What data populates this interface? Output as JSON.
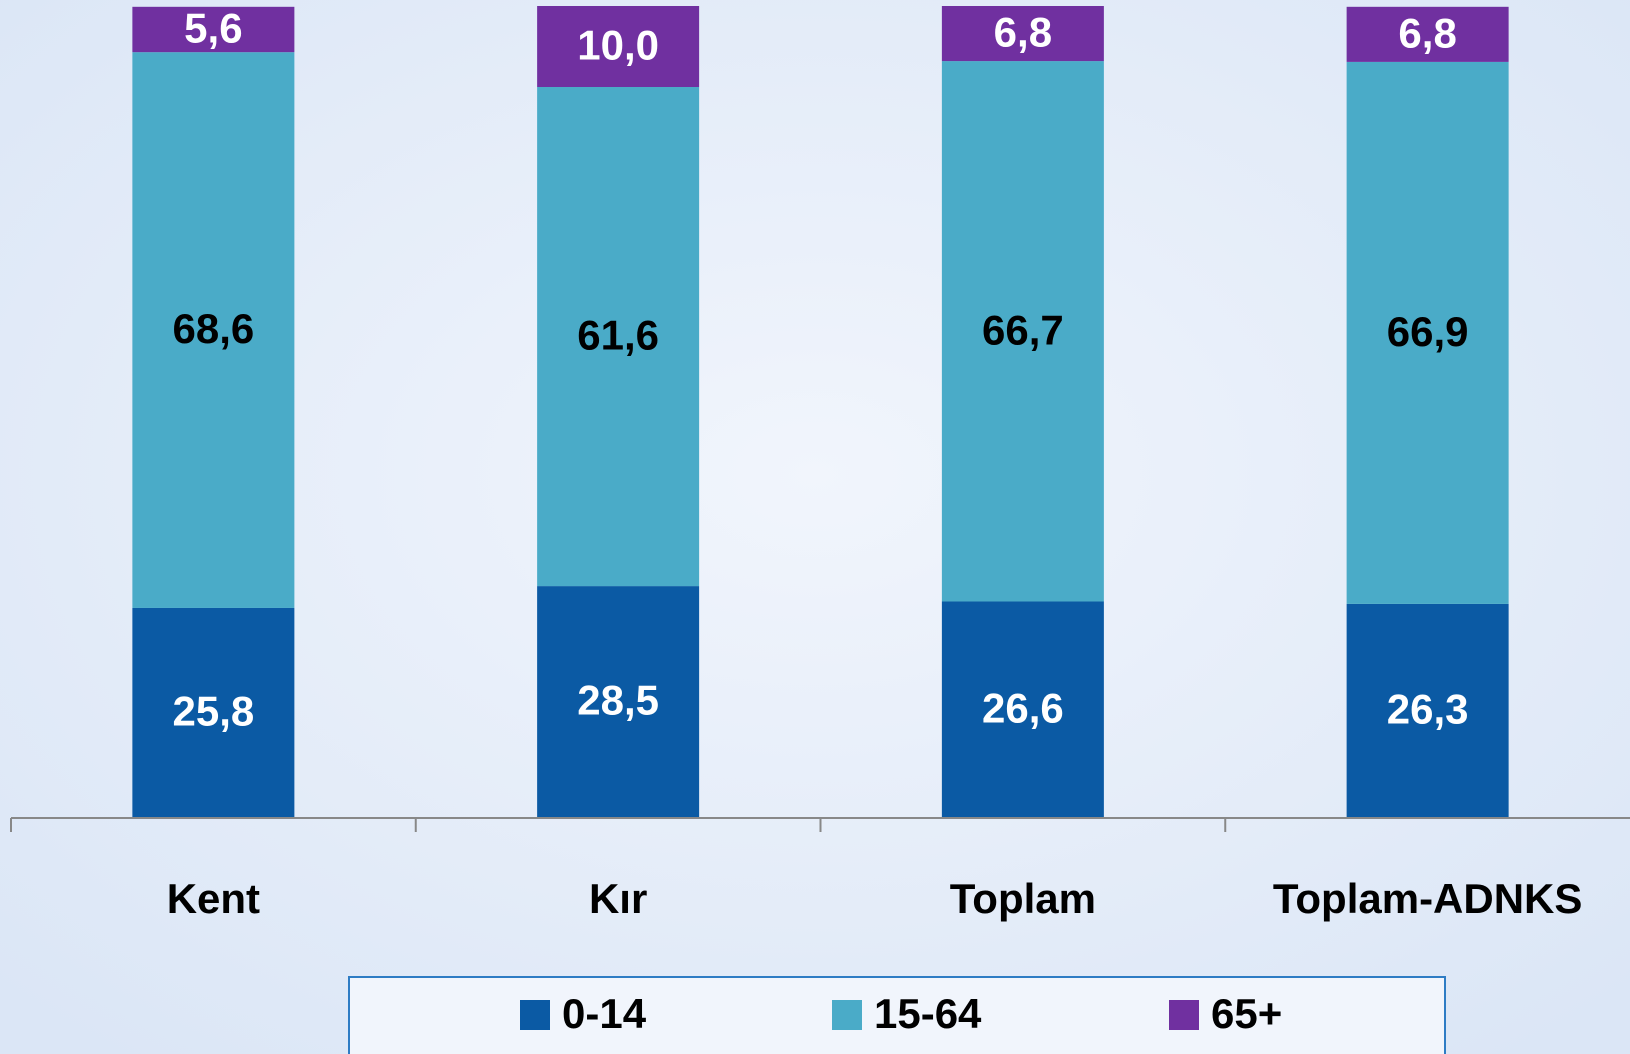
{
  "chart_data": {
    "type": "stacked_bar",
    "categories": [
      "Kent",
      "Kır",
      "Toplam",
      "Toplam-ADNKS"
    ],
    "series": [
      {
        "name": "0-14",
        "color": "#0b5aa4",
        "values": [
          25.8,
          28.5,
          26.6,
          26.3
        ],
        "value_labels": [
          "25,8",
          "28,5",
          "26,6",
          "26,3"
        ]
      },
      {
        "name": "15-64",
        "color": "#4aabc8",
        "values": [
          68.6,
          61.6,
          66.7,
          66.9
        ],
        "value_labels": [
          "68,6",
          "61,6",
          "66,7",
          "66,9"
        ]
      },
      {
        "name": "65+",
        "color": "#7030a0",
        "values": [
          5.6,
          10.0,
          6.8,
          6.8
        ],
        "value_labels": [
          "5,6",
          "10,0",
          "6,8",
          "6,8"
        ]
      }
    ],
    "legend": "bottom"
  }
}
